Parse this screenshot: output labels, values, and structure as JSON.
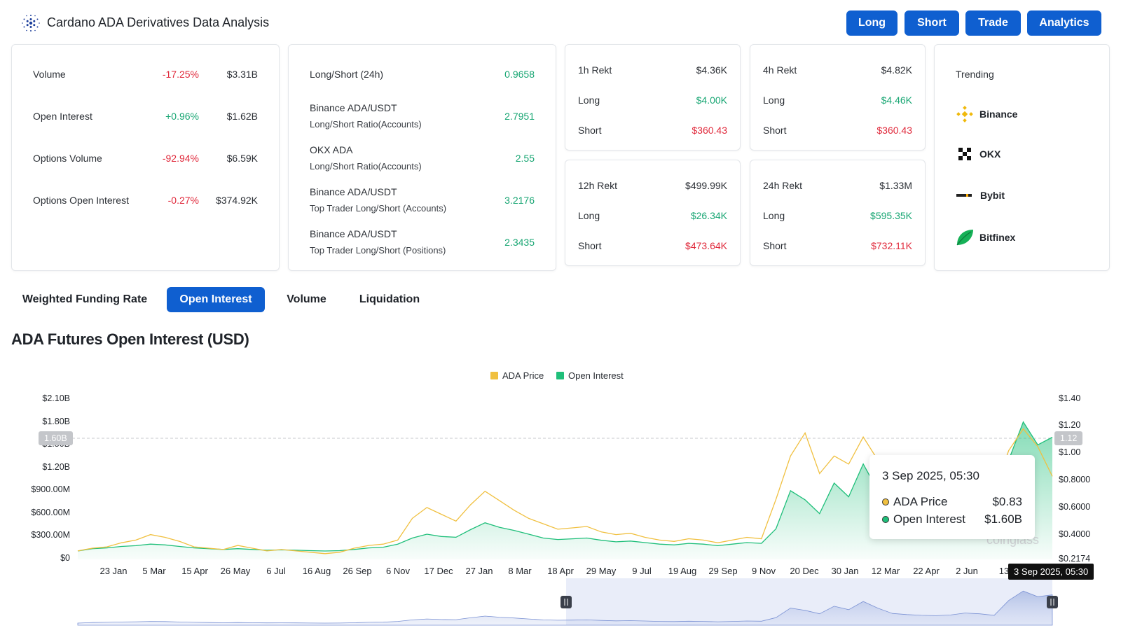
{
  "header": {
    "title": "Cardano ADA Derivatives Data Analysis",
    "buttons": [
      "Long",
      "Short",
      "Trade",
      "Analytics"
    ]
  },
  "summary": {
    "rows": [
      {
        "label": "Volume",
        "change": "-17.25%",
        "value": "$3.31B"
      },
      {
        "label": "Open Interest",
        "change": "+0.96%",
        "value": "$1.62B"
      },
      {
        "label": "Options Volume",
        "change": "-92.94%",
        "value": "$6.59K"
      },
      {
        "label": "Options Open Interest",
        "change": "-0.27%",
        "value": "$374.92K"
      }
    ]
  },
  "ratios": {
    "rows": [
      {
        "label": "Long/Short (24h)",
        "sub": "",
        "value": "0.9658"
      },
      {
        "label": "Binance ADA/USDT",
        "sub": "Long/Short Ratio(Accounts)",
        "value": "2.7951"
      },
      {
        "label": "OKX ADA",
        "sub": "Long/Short Ratio(Accounts)",
        "value": "2.55"
      },
      {
        "label": "Binance ADA/USDT",
        "sub": "Top Trader Long/Short (Accounts)",
        "value": "3.2176"
      },
      {
        "label": "Binance ADA/USDT",
        "sub": "Top Trader Long/Short (Positions)",
        "value": "2.3435"
      }
    ]
  },
  "rekt": [
    {
      "title": "1h Rekt",
      "total": "$4.36K",
      "long_label": "Long",
      "long": "$4.00K",
      "short_label": "Short",
      "short": "$360.43"
    },
    {
      "title": "4h Rekt",
      "total": "$4.82K",
      "long_label": "Long",
      "long": "$4.46K",
      "short_label": "Short",
      "short": "$360.43"
    },
    {
      "title": "12h Rekt",
      "total": "$499.99K",
      "long_label": "Long",
      "long": "$26.34K",
      "short_label": "Short",
      "short": "$473.64K"
    },
    {
      "title": "24h Rekt",
      "total": "$1.33M",
      "long_label": "Long",
      "long": "$595.35K",
      "short_label": "Short",
      "short": "$732.11K"
    }
  ],
  "trending": {
    "title": "Trending",
    "items": [
      {
        "name": "Binance",
        "icon": "binance-icon"
      },
      {
        "name": "OKX",
        "icon": "okx-icon"
      },
      {
        "name": "Bybit",
        "icon": "bybit-icon"
      },
      {
        "name": "Bitfinex",
        "icon": "bitfinex-icon"
      }
    ]
  },
  "tabs": [
    "Weighted Funding Rate",
    "Open Interest",
    "Volume",
    "Liquidation"
  ],
  "active_tab": "Open Interest",
  "colors": {
    "accent": "#0f5fd0",
    "price": "#f0c040",
    "oi": "#1fbf7a",
    "neg": "#e0293b",
    "pos": "#18a673"
  },
  "chart_data": {
    "type": "line",
    "title": "ADA Futures Open Interest (USD)",
    "legend": [
      "ADA Price",
      "Open Interest"
    ],
    "legend_position": "top-center",
    "y_left_ticks": [
      "$2.10B",
      "$1.80B",
      "$1.50B",
      "$1.20B",
      "$900.00M",
      "$600.00M",
      "$300.00M",
      "$0"
    ],
    "y_right_ticks": [
      "$1.40",
      "$1.20",
      "$1.00",
      "$0.8000",
      "$0.6000",
      "$0.4000",
      "$0.2174"
    ],
    "x_ticks": [
      "23 Jan",
      "5 Mar",
      "15 Apr",
      "26 May",
      "6 Jul",
      "16 Aug",
      "26 Sep",
      "6 Nov",
      "17 Dec",
      "27 Jan",
      "8 Mar",
      "18 Apr",
      "29 May",
      "9 Jul",
      "19 Aug",
      "29 Sep",
      "9 Nov",
      "20 Dec",
      "30 Jan",
      "12 Mar",
      "22 Apr",
      "2 Jun",
      "13 J"
    ],
    "ylim_left": [
      0,
      2100000000
    ],
    "ylim_right": [
      0.2174,
      1.4
    ],
    "series": [
      {
        "name": "ADA Price",
        "axis": "right",
        "values": [
          0.28,
          0.3,
          0.31,
          0.34,
          0.36,
          0.4,
          0.38,
          0.35,
          0.31,
          0.3,
          0.29,
          0.32,
          0.3,
          0.28,
          0.29,
          0.28,
          0.27,
          0.26,
          0.27,
          0.3,
          0.32,
          0.33,
          0.36,
          0.52,
          0.6,
          0.55,
          0.5,
          0.62,
          0.72,
          0.65,
          0.58,
          0.52,
          0.48,
          0.44,
          0.45,
          0.46,
          0.42,
          0.4,
          0.41,
          0.38,
          0.36,
          0.35,
          0.37,
          0.36,
          0.34,
          0.36,
          0.38,
          0.37,
          0.66,
          0.98,
          1.15,
          0.85,
          0.98,
          0.92,
          1.12,
          0.95,
          0.88,
          0.75,
          0.7,
          0.68,
          0.72,
          0.8,
          0.78,
          0.72,
          1.02,
          1.18,
          1.05,
          0.83
        ]
      },
      {
        "name": "Open Interest",
        "axis": "left",
        "values": [
          110,
          140,
          150,
          170,
          180,
          200,
          190,
          170,
          150,
          140,
          130,
          140,
          130,
          120,
          125,
          120,
          115,
          110,
          115,
          130,
          150,
          160,
          200,
          280,
          330,
          300,
          290,
          390,
          480,
          420,
          380,
          330,
          280,
          260,
          270,
          280,
          250,
          230,
          240,
          220,
          200,
          190,
          210,
          200,
          180,
          200,
          220,
          210,
          400,
          900,
          780,
          600,
          1000,
          820,
          1250,
          900,
          620,
          560,
          520,
          500,
          540,
          640,
          600,
          520,
          1300,
          1800,
          1500,
          1600
        ]
      }
    ],
    "oi_unit": "$M",
    "crosshair": {
      "y_left": "1.60B",
      "y_right": "1.12",
      "x": "3 Sep 2025, 05:30"
    },
    "tooltip": {
      "title": "3 Sep 2025, 05:30",
      "rows": [
        {
          "label": "ADA Price",
          "value": "$0.83"
        },
        {
          "label": "Open Interest",
          "value": "$1.60B"
        }
      ]
    },
    "grid": false
  }
}
